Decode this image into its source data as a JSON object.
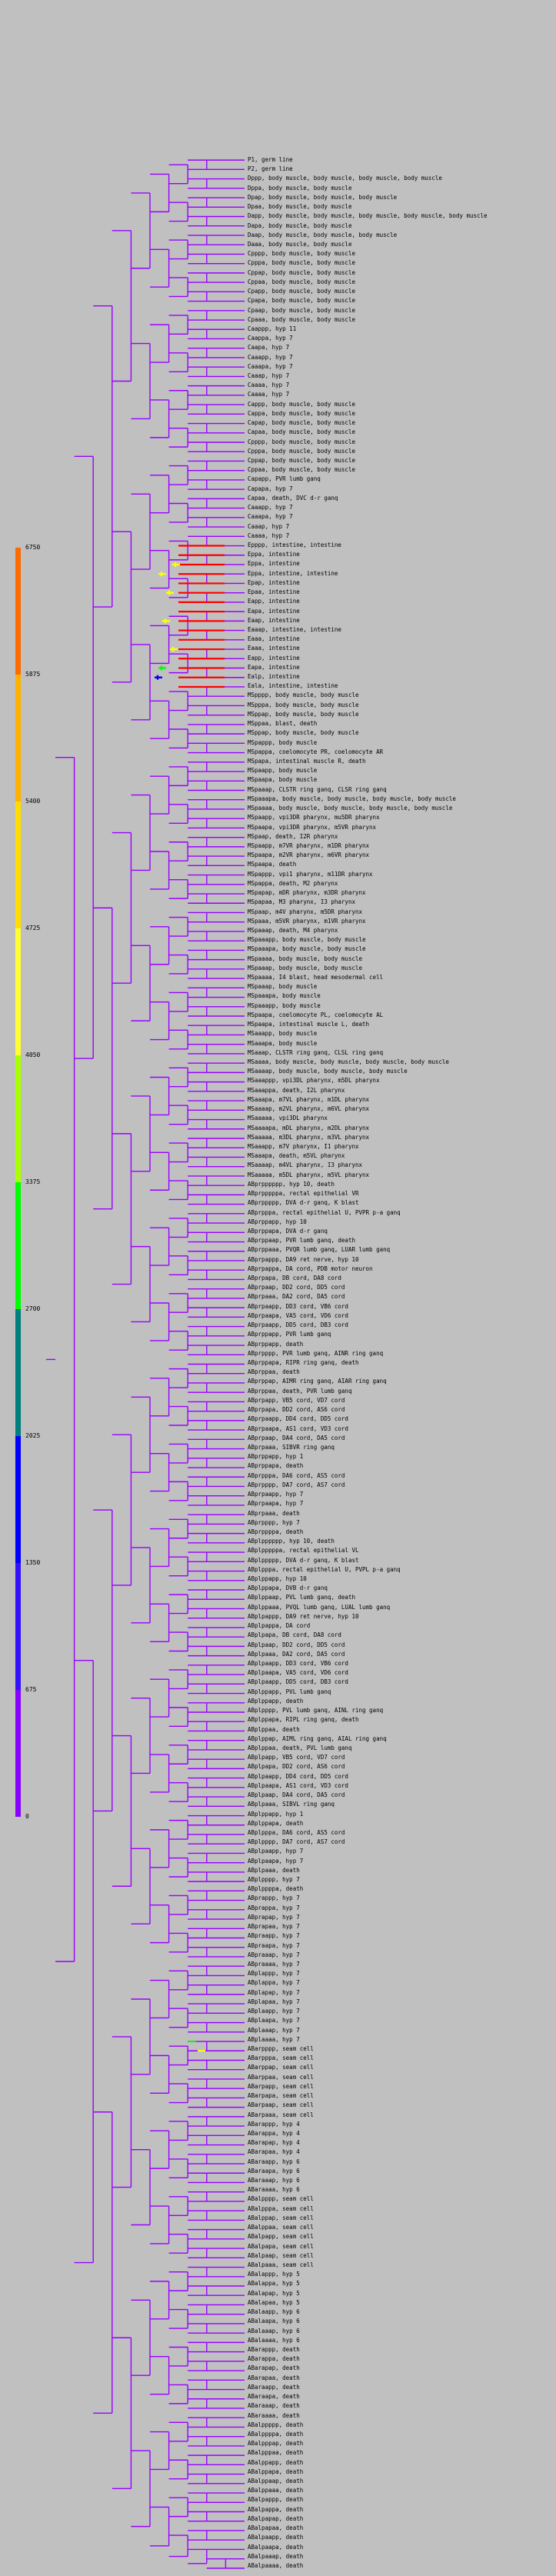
{
  "scale": {
    "labels": [
      "6750",
      "5875",
      "5400",
      "4725",
      "4050",
      "3375",
      "2700",
      "2025",
      "1350",
      "675",
      "0"
    ],
    "colors": [
      "#ff6a00",
      "#ffb000",
      "#ffdd00",
      "#ffff33",
      "#aaff00",
      "#00ff00",
      "#007f7f",
      "#0000ff",
      "#3311ff",
      "#8800ff",
      "#bb00ff"
    ]
  },
  "tree": {
    "branch_color": "#9900ff",
    "highlight_colors": [
      "#ff0000",
      "#ffff00",
      "#00ff00",
      "#0000ff"
    ]
  },
  "leaves": [
    "P1, germ line",
    "P2, germ line",
    "Dppp, body muscle, body muscle, body muscle, body muscle",
    "Dppa, body muscle, body muscle",
    "Dpap, body muscle, body muscle, body muscle",
    "Dpaa, body muscle, body muscle",
    "Dapp, body muscle, body muscle, body muscle, body muscle, body muscle",
    "Dapa, body muscle, body muscle",
    "Daap, body muscle, body muscle, body muscle",
    "Daaa, body muscle, body muscle",
    "Cpppp, body muscle, body muscle",
    "Cpppa, body muscle, body muscle",
    "Cppap, body muscle, body muscle",
    "Cppaa, body muscle, body muscle",
    "Cpapp, body muscle, body muscle",
    "Cpapa, body muscle, body muscle",
    "Cpaap, body muscle, body muscle",
    "Cpaaa, body muscle, body muscle",
    "Caappp, hyp 11",
    "Caappa, hyp 7",
    "Caapa, hyp 7",
    "Caaapp, hyp 7",
    "Caaapa, hyp 7",
    "Caaap, hyp 7",
    "Caaaa, hyp 7",
    "Caaaa, hyp 7",
    "Cappp, body muscle, body muscle",
    "Cappa, body muscle, body muscle",
    "Capap, body muscle, body muscle",
    "Capaa, body muscle, body muscle",
    "Cpppp, body muscle, body muscle",
    "Cpppa, body muscle, body muscle",
    "Cppap, body muscle, body muscle",
    "Cppaa, body muscle, body muscle",
    "Capapp, PVR lumb ganq",
    "Capapa, hyp 7",
    "Capaa, death, DVC d-r ganq",
    "Caaapp, hyp 7",
    "Caaapa, hyp 7",
    "Caaap, hyp 7",
    "Caaaa, hyp 7",
    "Epppp, intestine, intestine",
    "Eppa, intestine",
    "Eppa, intestine",
    "Eppa, intestine, intestine",
    "Epap, intestine",
    "Epaa, intestine",
    "Eapp, intestine",
    "Eapa, intestine",
    "Eaap, intestine",
    "Eaaap, intestine, intestine",
    "Eaaa, intestine",
    "Eaaa, intestine",
    "Eapp, intestine",
    "Eapa, intestine",
    "Ealp, intestine",
    "Eala, intestine, intestine",
    "MSpppp, body muscle, body muscle",
    "MSpppa, body muscle, body muscle",
    "MSppap, body muscle, body muscle",
    "MSppaa, blast, death",
    "MSppap, body muscle, body muscle",
    "MSpappp, body muscle",
    "MSpappa, coelomocyte PR, coelomocyte AR",
    "MSpapa, intestinal muscle R, death",
    "MSpaapp, body muscle",
    "MSpaapa, body muscle",
    "MSpaaap, CLSTR ring ganq, CLSR ring ganq",
    "MSpaaapa, body muscle, body muscle, body muscle, body muscle",
    "MSpaaaa, body muscle, body muscle, body muscle, body muscle",
    "MSpaapp, vpi3DR pharynx, mu5DR pharynx",
    "MSpaapa, vpi3DR pharynx, m5VR pharynx",
    "MSpaap, death, I2R pharynx",
    "MSpaapp, m7VR pharynx, m1DR pharynx",
    "MSpaapa, m2VR pharynx, m6VR pharynx",
    "MSpaapa, death",
    "MSpappp, vpi1 pharynx, m11DR pharynx",
    "MSpappa, death, M2 pharynx",
    "MSpapap, mDR pharynx, m3DR pharynx",
    "MSpapaa, M3 pharynx, I3 pharynx",
    "MSpaap, m4V pharynx, m5DR pharynx",
    "MSpaaa, m5VR pharynx, m1VR pharynx",
    "MSpaaap, death, M4 pharynx",
    "MSpaaapp, body muscle, body muscle",
    "MSpaaapa, body muscle, body muscle",
    "MSpaaaa, body muscle, body muscle",
    "MSpaaap, body muscle, body muscle",
    "MSpaaaa, I4 blast, head mesodermal cell",
    "MSpaaap, body muscle",
    "MSpaaapa, body muscle",
    "MSpaaapp, body muscle",
    "MSpaapa, coelomocyte PL, coelomocyte AL",
    "MSpaapa, intestinal muscle L, death",
    "MSaaapp, body muscle",
    "MSaaapa, body muscle",
    "MSaaap, CLSTR ring ganq, CLSL ring ganq",
    "MSaaaa, body muscle, body muscle, body muscle, body muscle",
    "MSaaaap, body muscle, body muscle, body muscle",
    "MSaaappp, vpi3DL pharynx, m5DL pharynx",
    "MSaaappa, death, I2L pharynx",
    "MSaaapa, m7VL pharynx, m1DL pharynx",
    "MSaaaap, m2VL pharynx, m6VL pharynx",
    "MSaaaaa, vpi3DL pharynx",
    "MSaaaapa, mDL pharynx, m2DL pharynx",
    "MSaaaaa, m3DL pharynx, m3VL pharynx",
    "MSaaapp, m7V pharynx, I1 pharynx",
    "MSaaapa, death, m5VL pharynx",
    "MSaaaap, m4VL pharynx, I3 pharynx",
    "MSaaaaa, m5DL pharynx, m5VL pharynx",
    "ABprpppppp, hyp 10, death",
    "ABprpppppa, rectal epithelial VR",
    "ABprppppp, DVA d-r ganq, K blast",
    "ABprpppa, rectal epithelial U, PVPR p-a ganq",
    "ABprppapp, hyp 10",
    "ABprppapa, DVA d-r ganq",
    "ABprppaap, PVR lumb ganq, death",
    "ABprppaaa, PVQR lumb ganq, LUAR lumb ganq",
    "ABprpappp, DA9 ret nerve, hyp 10",
    "ABprpappa, DA cord, PDB motor neuron",
    "ABprpapa, DB cord, DA8 cord",
    "ABprpaap, DD2 cord, DD5 cord",
    "ABprpaaa, DA2 cord, DA5 cord",
    "ABprpaapp, DD3 cord, VB6 cord",
    "ABprpaapa, VA5 cord, VD6 cord",
    "ABprpaapp, DD5 cord, DB3 cord",
    "ABprppapp, PVR lumb ganq",
    "ABprppapp, death",
    "ABprpppp, PVR lumb ganq, AINR ring ganq",
    "ABprppapa, RIPR ring ganq, death",
    "ABprppaa, death",
    "ABprppap, AIMR ring ganq, AIAR ring ganq",
    "ABprppaa, death, PVR lumb ganq",
    "ABprpapp, VB5 cord, VD7 cord",
    "ABprpapa, DD2 cord, AS6 cord",
    "ABprpaapp, DD4 cord, DD5 cord",
    "ABprpaapa, AS1 cord, VD3 cord",
    "ABprpaap, DA4 cord, DA5 cord",
    "ABprpaaa, SIBVR ring ganq",
    "ABprppapp, hyp 1",
    "ABprppapa, death",
    "ABprpppa, DA6 cord, AS5 cord",
    "ABprpppp, DA7 cord, AS7 cord",
    "ABprpaapp, hyp 7",
    "ABprpaapa, hyp 7",
    "ABprpaaa, death",
    "ABprpppp, hyp 7",
    "ABprppppa, death",
    "ABplpppppp, hyp 10, death",
    "ABplpppppa, rectal epithelial VL",
    "ABplppppp, DVA d-r ganq, K blast",
    "ABplpppa, rectal epithelial U, PVPL p-a ganq",
    "ABplppapp, hyp 10",
    "ABplppapa, DVB d-r ganq",
    "ABplppaap, PVL lumb ganq, death",
    "ABplppaaa, PVQL lumb ganq, LUAL lumb ganq",
    "ABplpappp, DA9 ret nerve, hyp 10",
    "ABplpappa, DA cord",
    "ABplpapa, DB cord, DA8 cord",
    "ABplpaap, DD2 cord, DD5 cord",
    "ABplpaaa, DA2 cord, DA5 cord",
    "ABplpaapp, DD3 cord, VB6 cord",
    "ABplpaapa, VA5 cord, VD6 cord",
    "ABplpaapp, DD5 cord, DB3 cord",
    "ABplppapp, PVL lumb ganq",
    "ABplppapp, death",
    "ABplpppp, PVL lumb ganq, AINL ring ganq",
    "ABplppapa, RIPL ring ganq, death",
    "ABplppaa, death",
    "ABplppap, AIML ring ganq, AIAL ring ganq",
    "ABplppaa, death, PVL lumb ganq",
    "ABplpapp, VB5 cord, VD7 cord",
    "ABplpapa, DD2 cord, AS6 cord",
    "ABplpaapp, DD4 cord, DD5 cord",
    "ABplpaapa, AS1 cord, VD3 cord",
    "ABplpaap, DA4 cord, DA5 cord",
    "ABplpaaa, SIBVL ring ganq",
    "ABplppapp, hyp 1",
    "ABplppapa, death",
    "ABplpppa, DA6 cord, AS5 cord",
    "ABplpppp, DA7 cord, AS7 cord",
    "ABplpaapp, hyp 7",
    "ABplpaapa, hyp 7",
    "ABplpaaa, death",
    "ABplpppp, hyp 7",
    "ABplppppa, death",
    "ABprappp, hyp 7",
    "ABprappa, hyp 7",
    "ABprapap, hyp 7",
    "ABprapaa, hyp 7",
    "ABpraapp, hyp 7",
    "ABpraapa, hyp 7",
    "ABpraaap, hyp 7",
    "ABpraaaa, hyp 7",
    "ABplappp, hyp 7",
    "ABplappa, hyp 7",
    "ABplapap, hyp 7",
    "ABplapaa, hyp 7",
    "ABplaapp, hyp 7",
    "ABplaapa, hyp 7",
    "ABplaaap, hyp 7",
    "ABplaaaa, hyp 7",
    "ABarpppp, seam cell",
    "ABarpppa, seam cell",
    "ABarppap, seam cell",
    "ABarppaa, seam cell",
    "ABarpapp, seam cell",
    "ABarpapa, seam cell",
    "ABarpaap, seam cell",
    "ABarpaaa, seam cell",
    "ABarappp, hyp 4",
    "ABarappa, hyp 4",
    "ABarapap, hyp 4",
    "ABarapaa, hyp 4",
    "ABaraapp, hyp 6",
    "ABaraapa, hyp 6",
    "ABaraaap, hyp 6",
    "ABaraaaa, hyp 6",
    "ABalpppp, seam cell",
    "ABalpppa, seam cell",
    "ABalppap, seam cell",
    "ABalppaa, seam cell",
    "ABalpapp, seam cell",
    "ABalpapa, seam cell",
    "ABalpaap, seam cell",
    "ABalpaaa, seam cell",
    "ABalappp, hyp 5",
    "ABalappa, hyp 5",
    "ABalapap, hyp 5",
    "ABalapaa, hyp 5",
    "ABalaapp, hyp 6",
    "ABalaapa, hyp 6",
    "ABalaaap, hyp 6",
    "ABalaaaa, hyp 6",
    "ABarappp, death",
    "ABarappa, death",
    "ABarapap, death",
    "ABarapaa, death",
    "ABaraapp, death",
    "ABaraapa, death",
    "ABaraaap, death",
    "ABaraaaa, death",
    "ABalppppp, death",
    "ABalppppa, death",
    "ABalpppap, death",
    "ABalpppaa, death",
    "ABalppapp, death",
    "ABalppapa, death",
    "ABalppaap, death",
    "ABalppaaa, death",
    "ABalpappp, death",
    "ABalpappa, death",
    "ABalpapap, death",
    "ABalpapaa, death",
    "ABalpaapp, death",
    "ABalpaapa, death",
    "ABalpaaap, death",
    "ABalpaaaa, death"
  ]
}
